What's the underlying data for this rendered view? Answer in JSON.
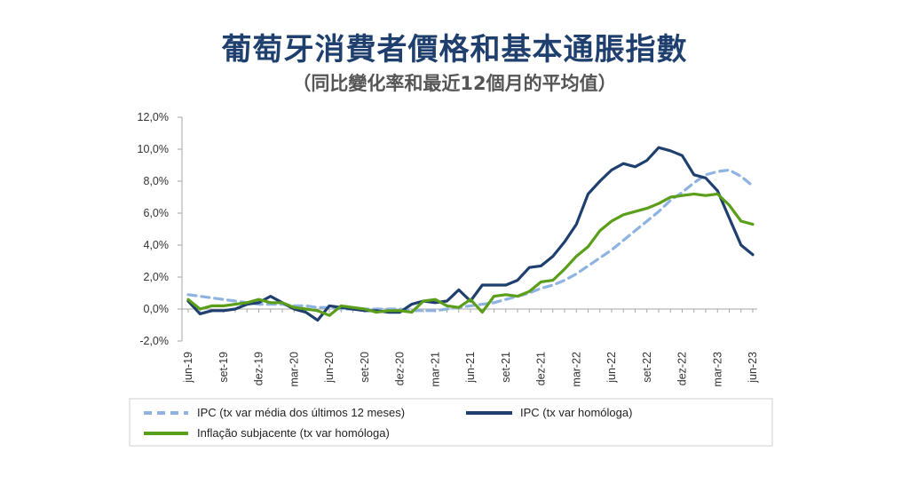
{
  "title": "葡萄牙消費者價格和基本通脹指數",
  "subtitle": "（同比變化率和最近12個月的平均值）",
  "chart_data": {
    "type": "line",
    "ylim": [
      -2.0,
      12.0
    ],
    "yticks": [
      "12,0%",
      "10,0%",
      "8,0%",
      "6,0%",
      "4,0%",
      "2,0%",
      "0,0%",
      "-2,0%"
    ],
    "ytick_values": [
      12,
      10,
      8,
      6,
      4,
      2,
      0,
      -2
    ],
    "xtick_labels": [
      "jun-19",
      "set-19",
      "dez-19",
      "mar-20",
      "jun-20",
      "set-20",
      "dez-20",
      "mar-21",
      "jun-21",
      "set-21",
      "dez-21",
      "mar-22",
      "jun-22",
      "set-22",
      "dez-22",
      "mar-23",
      "jun-23"
    ],
    "x": [
      "jun-19",
      "jul-19",
      "ago-19",
      "set-19",
      "out-19",
      "nov-19",
      "dez-19",
      "jan-20",
      "fev-20",
      "mar-20",
      "abr-20",
      "mai-20",
      "jun-20",
      "jul-20",
      "ago-20",
      "set-20",
      "out-20",
      "nov-20",
      "dez-20",
      "jan-21",
      "fev-21",
      "mar-21",
      "abr-21",
      "mai-21",
      "jun-21",
      "jul-21",
      "ago-21",
      "set-21",
      "out-21",
      "nov-21",
      "dez-21",
      "jan-22",
      "fev-22",
      "mar-22",
      "abr-22",
      "mai-22",
      "jun-22",
      "jul-22",
      "ago-22",
      "set-22",
      "out-22",
      "nov-22",
      "dez-22",
      "jan-23",
      "fev-23",
      "mar-23",
      "abr-23",
      "mai-23",
      "jun-23"
    ],
    "series": [
      {
        "name": "IPC (tx var média dos últimos 12 meses)",
        "color": "#8fb3e0",
        "dash": true,
        "values": [
          0.9,
          0.8,
          0.7,
          0.6,
          0.5,
          0.4,
          0.3,
          0.3,
          0.3,
          0.2,
          0.2,
          0.1,
          0.1,
          0.0,
          0.0,
          0.0,
          0.0,
          0.0,
          0.0,
          -0.1,
          -0.1,
          -0.1,
          0.0,
          0.1,
          0.2,
          0.3,
          0.4,
          0.6,
          0.8,
          1.0,
          1.3,
          1.5,
          1.8,
          2.2,
          2.7,
          3.2,
          3.7,
          4.3,
          4.9,
          5.5,
          6.1,
          6.8,
          7.3,
          7.9,
          8.4,
          8.6,
          8.7,
          8.3,
          7.7
        ]
      },
      {
        "name": "IPC (tx var homóloga)",
        "color": "#1f3f6e",
        "dash": false,
        "values": [
          0.5,
          -0.3,
          -0.1,
          -0.1,
          0.0,
          0.3,
          0.4,
          0.8,
          0.4,
          0.0,
          -0.2,
          -0.7,
          0.2,
          0.1,
          0.0,
          -0.1,
          -0.1,
          -0.2,
          -0.2,
          0.3,
          0.5,
          0.4,
          0.5,
          1.2,
          0.5,
          1.5,
          1.5,
          1.5,
          1.8,
          2.6,
          2.7,
          3.3,
          4.2,
          5.3,
          7.2,
          8.0,
          8.7,
          9.1,
          8.9,
          9.3,
          10.1,
          9.9,
          9.6,
          8.4,
          8.2,
          7.4,
          5.7,
          4.0,
          3.4
        ]
      },
      {
        "name": "Inflação subjacente (tx var homóloga)",
        "color": "#5a9e1a",
        "dash": false,
        "values": [
          0.6,
          0.0,
          0.2,
          0.2,
          0.3,
          0.4,
          0.6,
          0.4,
          0.4,
          0.1,
          0.0,
          -0.1,
          -0.4,
          0.2,
          0.1,
          0.0,
          -0.2,
          -0.1,
          -0.1,
          -0.2,
          0.5,
          0.6,
          0.2,
          0.1,
          0.6,
          -0.2,
          0.8,
          0.9,
          0.8,
          1.1,
          1.7,
          1.8,
          2.5,
          3.3,
          3.9,
          4.9,
          5.5,
          5.9,
          6.1,
          6.3,
          6.6,
          7.0,
          7.1,
          7.2,
          7.1,
          7.2,
          6.5,
          5.5,
          5.3
        ]
      }
    ]
  }
}
